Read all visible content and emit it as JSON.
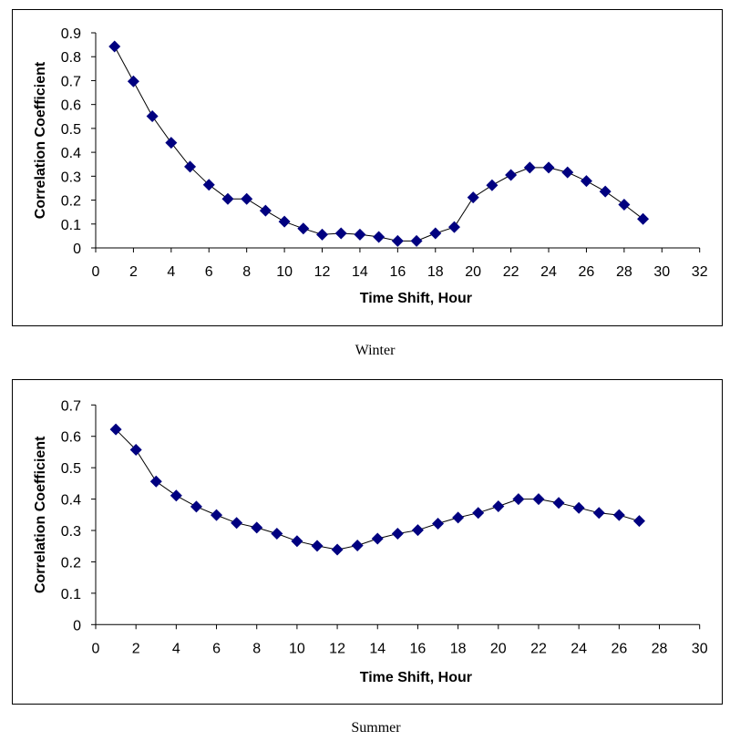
{
  "chart_data": [
    {
      "type": "line",
      "title": "",
      "caption": "Winter",
      "xlabel": "Time Shift, Hour",
      "ylabel": "Correlation Coefficient",
      "xlim": [
        0,
        32
      ],
      "ylim": [
        0,
        0.9
      ],
      "x_ticks": [
        0,
        2,
        4,
        6,
        8,
        10,
        12,
        14,
        16,
        18,
        20,
        22,
        24,
        26,
        28,
        30,
        32
      ],
      "y_ticks": [
        0,
        0.1,
        0.2,
        0.3,
        0.4,
        0.5,
        0.6,
        0.7,
        0.8,
        0.9
      ],
      "y_tick_labels": [
        "0",
        "0.1",
        "0.2",
        "0.3",
        "0.4",
        "0.5",
        "0.6",
        "0.7",
        "0.8",
        "0.9"
      ],
      "grid": false,
      "legend": "none",
      "marker": "diamond",
      "marker_color": "#000080",
      "line_color": "#000000",
      "series": [
        {
          "name": "Winter",
          "x": [
            1,
            2,
            3,
            4,
            5,
            6,
            7,
            8,
            9,
            10,
            11,
            12,
            13,
            14,
            15,
            16,
            17,
            18,
            19,
            20,
            21,
            22,
            23,
            24,
            25,
            26,
            27,
            28,
            29
          ],
          "values": [
            0.843,
            0.697,
            0.551,
            0.44,
            0.34,
            0.264,
            0.205,
            0.205,
            0.156,
            0.11,
            0.081,
            0.056,
            0.061,
            0.056,
            0.046,
            0.029,
            0.029,
            0.061,
            0.087,
            0.211,
            0.262,
            0.305,
            0.336,
            0.336,
            0.316,
            0.28,
            0.236,
            0.181,
            0.121
          ]
        }
      ]
    },
    {
      "type": "line",
      "title": "",
      "caption": "Summer",
      "xlabel": "Time Shift, Hour",
      "ylabel": "Correlation Coefficient",
      "xlim": [
        0,
        30
      ],
      "ylim": [
        0,
        0.7
      ],
      "x_ticks": [
        0,
        2,
        4,
        6,
        8,
        10,
        12,
        14,
        16,
        18,
        20,
        22,
        24,
        26,
        28,
        30
      ],
      "y_ticks": [
        0,
        0.1,
        0.2,
        0.3,
        0.4,
        0.5,
        0.6,
        0.7
      ],
      "y_tick_labels": [
        "0",
        "0.1",
        "0.2",
        "0.3",
        "0.4",
        "0.5",
        "0.6",
        "0.7"
      ],
      "grid": false,
      "legend": "none",
      "marker": "diamond",
      "marker_color": "#000080",
      "line_color": "#000000",
      "series": [
        {
          "name": "Summer",
          "x": [
            1,
            2,
            3,
            4,
            5,
            6,
            7,
            8,
            9,
            10,
            11,
            12,
            13,
            14,
            15,
            16,
            17,
            18,
            19,
            20,
            21,
            22,
            23,
            24,
            25,
            26,
            27
          ],
          "values": [
            0.622,
            0.557,
            0.456,
            0.411,
            0.376,
            0.349,
            0.324,
            0.309,
            0.29,
            0.266,
            0.251,
            0.239,
            0.252,
            0.274,
            0.29,
            0.301,
            0.322,
            0.341,
            0.356,
            0.377,
            0.4,
            0.4,
            0.388,
            0.372,
            0.356,
            0.349,
            0.33
          ]
        }
      ]
    }
  ]
}
